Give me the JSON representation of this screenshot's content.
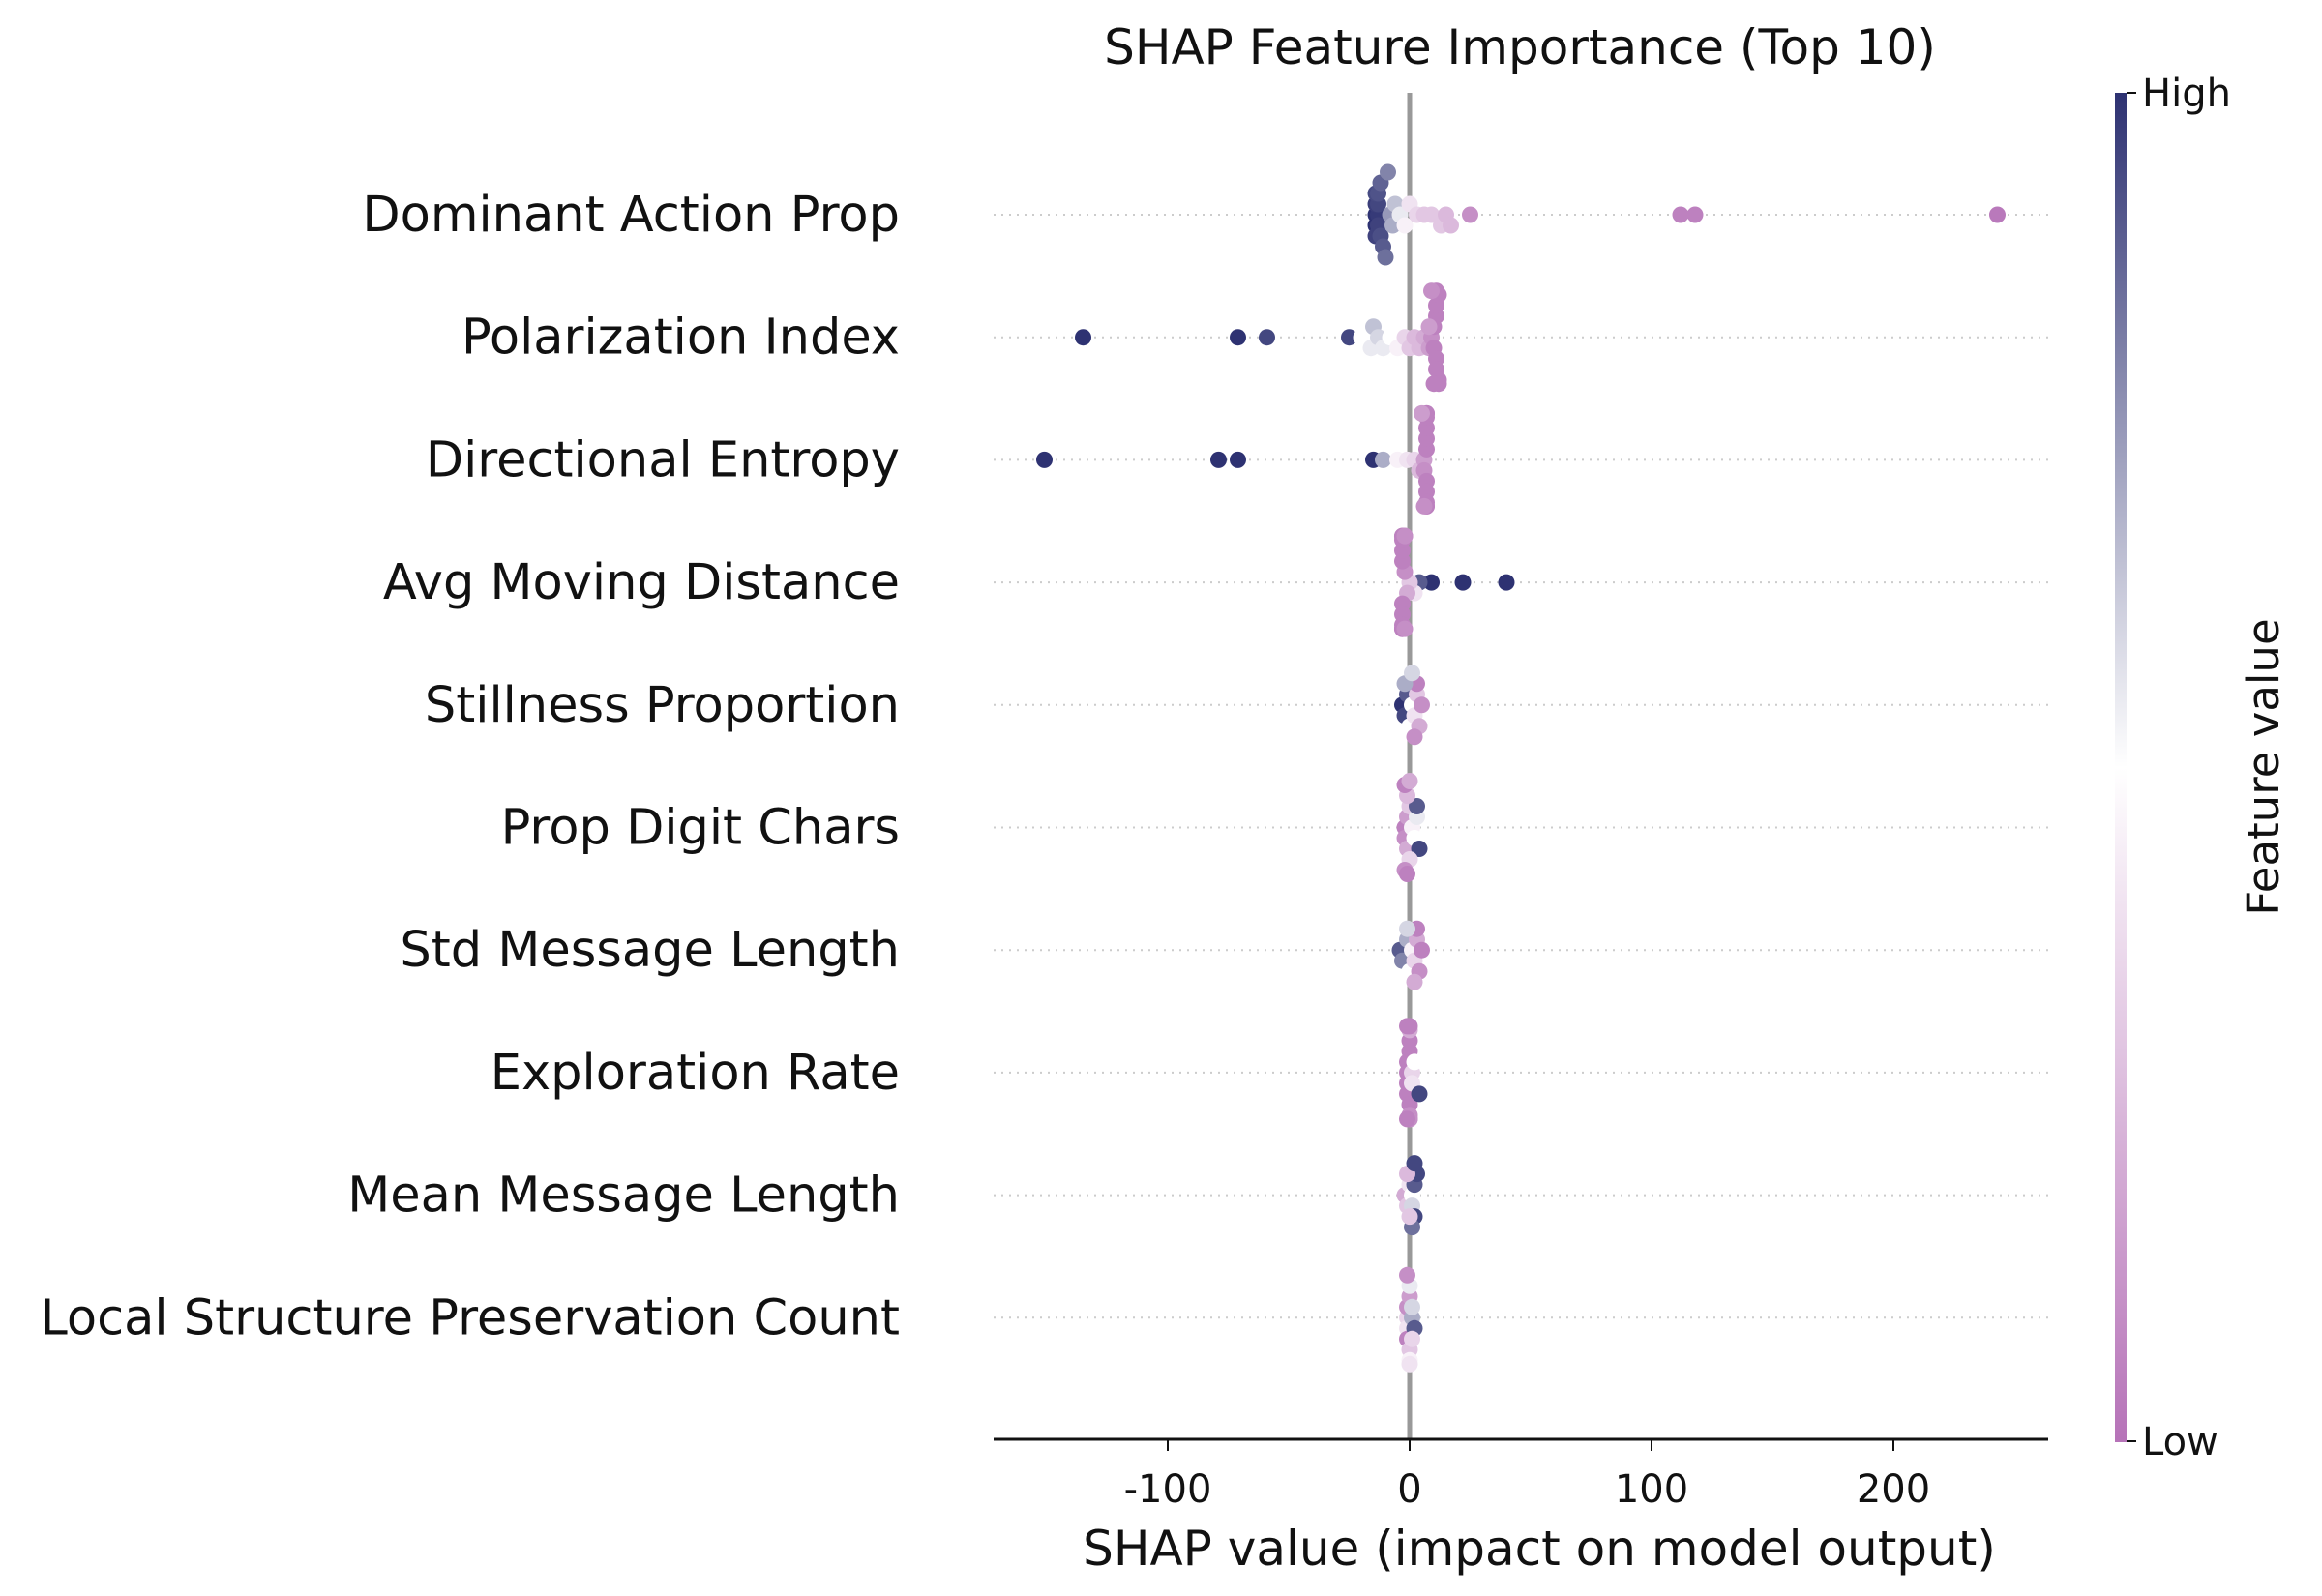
{
  "chart_data": {
    "type": "scatter",
    "title": "SHAP Feature Importance (Top 10)",
    "xlabel": "SHAP value (impact on model output)",
    "ylabel": "",
    "xlim": [
      -172,
      264
    ],
    "xticks": [
      -100,
      0,
      100,
      200
    ],
    "xtick_labels": [
      "-100",
      "0",
      "100",
      "200"
    ],
    "grid": "dotted horizontal guide per feature row",
    "colorbar": {
      "title": "Feature value",
      "high_label": "High",
      "low_label": "Low",
      "high_color": "#2e3272",
      "mid_color": "#ffffff",
      "low_color": "#b673b8"
    },
    "features": [
      {
        "name": "Dominant Action Prop",
        "points": [
          [
            -14,
            1.0
          ],
          [
            -14,
            1.0
          ],
          [
            -13,
            0.98
          ],
          [
            -14,
            0.97
          ],
          [
            -13,
            0.96
          ],
          [
            -14,
            0.96
          ],
          [
            -13,
            0.95
          ],
          [
            -14,
            0.94
          ],
          [
            -12,
            0.93
          ],
          [
            -13,
            0.92
          ],
          [
            -11,
            0.9
          ],
          [
            -12,
            0.88
          ],
          [
            -10,
            0.85
          ],
          [
            -9,
            0.8
          ],
          [
            -8,
            0.75
          ],
          [
            -7,
            0.7
          ],
          [
            -6,
            0.65
          ],
          [
            -4,
            0.55
          ],
          [
            -2,
            0.45
          ],
          [
            0,
            0.4
          ],
          [
            3,
            0.35
          ],
          [
            6,
            0.3
          ],
          [
            9,
            0.3
          ],
          [
            13,
            0.3
          ],
          [
            15,
            0.25
          ],
          [
            17,
            0.25
          ],
          [
            25,
            0.1
          ],
          [
            112,
            0.05
          ],
          [
            118,
            0.05
          ],
          [
            243,
            0.02
          ]
        ]
      },
      {
        "name": "Polarization Index",
        "points": [
          [
            -135,
            1.0
          ],
          [
            -71,
            1.0
          ],
          [
            -59,
            0.95
          ],
          [
            -25,
            0.95
          ],
          [
            -20,
            0.5
          ],
          [
            -17,
            0.5
          ],
          [
            -16,
            0.55
          ],
          [
            -15,
            0.65
          ],
          [
            -13,
            0.6
          ],
          [
            -11,
            0.55
          ],
          [
            -8,
            0.5
          ],
          [
            -5,
            0.45
          ],
          [
            -2,
            0.35
          ],
          [
            0,
            0.3
          ],
          [
            2,
            0.25
          ],
          [
            4,
            0.25
          ],
          [
            6,
            0.2
          ],
          [
            8,
            0.15
          ],
          [
            9,
            0.1
          ],
          [
            10,
            0.05
          ],
          [
            10,
            0.05
          ],
          [
            11,
            0.05
          ],
          [
            11,
            0.05
          ],
          [
            11,
            0.05
          ],
          [
            11,
            0.05
          ],
          [
            12,
            0.05
          ],
          [
            12,
            0.05
          ],
          [
            12,
            0.05
          ],
          [
            11,
            0.05
          ],
          [
            10,
            0.05
          ],
          [
            9,
            0.1
          ],
          [
            8,
            0.15
          ]
        ]
      },
      {
        "name": "Directional Entropy",
        "points": [
          [
            -151,
            1.0
          ],
          [
            -79,
            1.0
          ],
          [
            -71,
            1.0
          ],
          [
            -15,
            1.0
          ],
          [
            -11,
            0.7
          ],
          [
            -5,
            0.45
          ],
          [
            -1,
            0.4
          ],
          [
            2,
            0.35
          ],
          [
            4,
            0.25
          ],
          [
            6,
            0.15
          ],
          [
            6,
            0.1
          ],
          [
            7,
            0.05
          ],
          [
            7,
            0.05
          ],
          [
            7,
            0.05
          ],
          [
            7,
            0.05
          ],
          [
            7,
            0.05
          ],
          [
            7,
            0.05
          ],
          [
            7,
            0.05
          ],
          [
            7,
            0.05
          ],
          [
            7,
            0.05
          ],
          [
            7,
            0.05
          ],
          [
            7,
            0.05
          ],
          [
            6,
            0.1
          ],
          [
            5,
            0.15
          ]
        ]
      },
      {
        "name": "Avg Moving Distance",
        "points": [
          [
            40,
            1.0
          ],
          [
            22,
            1.0
          ],
          [
            9,
            1.0
          ],
          [
            4,
            0.9
          ],
          [
            2,
            0.4
          ],
          [
            0,
            0.3
          ],
          [
            -1,
            0.2
          ],
          [
            -2,
            0.1
          ],
          [
            -3,
            0.05
          ],
          [
            -3,
            0.05
          ],
          [
            -3,
            0.05
          ],
          [
            -3,
            0.05
          ],
          [
            -3,
            0.05
          ],
          [
            -3,
            0.05
          ],
          [
            -3,
            0.05
          ],
          [
            -3,
            0.05
          ],
          [
            -3,
            0.05
          ],
          [
            -3,
            0.05
          ],
          [
            -3,
            0.05
          ],
          [
            -2,
            0.05
          ],
          [
            -2,
            0.1
          ],
          [
            -2,
            0.1
          ]
        ]
      },
      {
        "name": "Stillness Proportion",
        "points": [
          [
            -3,
            1.0
          ],
          [
            -2,
            0.95
          ],
          [
            -1,
            0.9
          ],
          [
            0,
            0.5
          ],
          [
            1,
            0.5
          ],
          [
            2,
            0.4
          ],
          [
            3,
            0.3
          ],
          [
            4,
            0.2
          ],
          [
            5,
            0.1
          ],
          [
            3,
            0.05
          ],
          [
            2,
            0.1
          ],
          [
            -2,
            0.7
          ],
          [
            1,
            0.6
          ]
        ]
      },
      {
        "name": "Prop Digit Chars",
        "points": [
          [
            -2,
            0.05
          ],
          [
            -2,
            0.1
          ],
          [
            -1,
            0.15
          ],
          [
            -1,
            0.2
          ],
          [
            0,
            0.3
          ],
          [
            1,
            0.45
          ],
          [
            2,
            0.5
          ],
          [
            3,
            0.55
          ],
          [
            4,
            0.95
          ],
          [
            3,
            0.9
          ],
          [
            0,
            0.35
          ],
          [
            -1,
            0.25
          ],
          [
            -2,
            0.1
          ],
          [
            -2,
            0.05
          ],
          [
            -1,
            0.05
          ],
          [
            0,
            0.2
          ]
        ]
      },
      {
        "name": "Std Message Length",
        "points": [
          [
            -4,
            0.9
          ],
          [
            -3,
            0.8
          ],
          [
            -1,
            0.7
          ],
          [
            0,
            0.5
          ],
          [
            1,
            0.45
          ],
          [
            2,
            0.35
          ],
          [
            3,
            0.2
          ],
          [
            4,
            0.1
          ],
          [
            5,
            0.05
          ],
          [
            3,
            0.05
          ],
          [
            2,
            0.2
          ],
          [
            -1,
            0.6
          ]
        ]
      },
      {
        "name": "Exploration Rate",
        "points": [
          [
            -1,
            0.05
          ],
          [
            -1,
            0.05
          ],
          [
            -1,
            0.05
          ],
          [
            -1,
            0.05
          ],
          [
            0,
            0.05
          ],
          [
            0,
            0.05
          ],
          [
            0,
            0.05
          ],
          [
            0,
            0.1
          ],
          [
            0,
            0.2
          ],
          [
            1,
            0.35
          ],
          [
            1,
            0.4
          ],
          [
            2,
            0.5
          ],
          [
            4,
            0.95
          ],
          [
            0,
            0.05
          ],
          [
            -1,
            0.05
          ],
          [
            0,
            0.1
          ],
          [
            0,
            0.05
          ],
          [
            -1,
            0.05
          ]
        ]
      },
      {
        "name": "Mean Message Length",
        "points": [
          [
            -2,
            0.2
          ],
          [
            -1,
            0.3
          ],
          [
            0,
            0.4
          ],
          [
            1,
            0.5
          ],
          [
            1,
            0.6
          ],
          [
            2,
            0.9
          ],
          [
            2,
            0.95
          ],
          [
            3,
            0.95
          ],
          [
            1,
            0.85
          ],
          [
            0,
            0.3
          ],
          [
            -1,
            0.25
          ],
          [
            2,
            0.95
          ]
        ]
      },
      {
        "name": "Local Structure Preservation Count",
        "points": [
          [
            -1,
            0.35
          ],
          [
            -1,
            0.4
          ],
          [
            -1,
            0.1
          ],
          [
            -1,
            0.05
          ],
          [
            0,
            0.15
          ],
          [
            0,
            0.3
          ],
          [
            0,
            0.55
          ],
          [
            1,
            0.7
          ],
          [
            2,
            0.9
          ],
          [
            1,
            0.6
          ],
          [
            0,
            0.45
          ],
          [
            -1,
            0.1
          ],
          [
            0,
            0.4
          ],
          [
            1,
            0.35
          ]
        ]
      }
    ]
  }
}
